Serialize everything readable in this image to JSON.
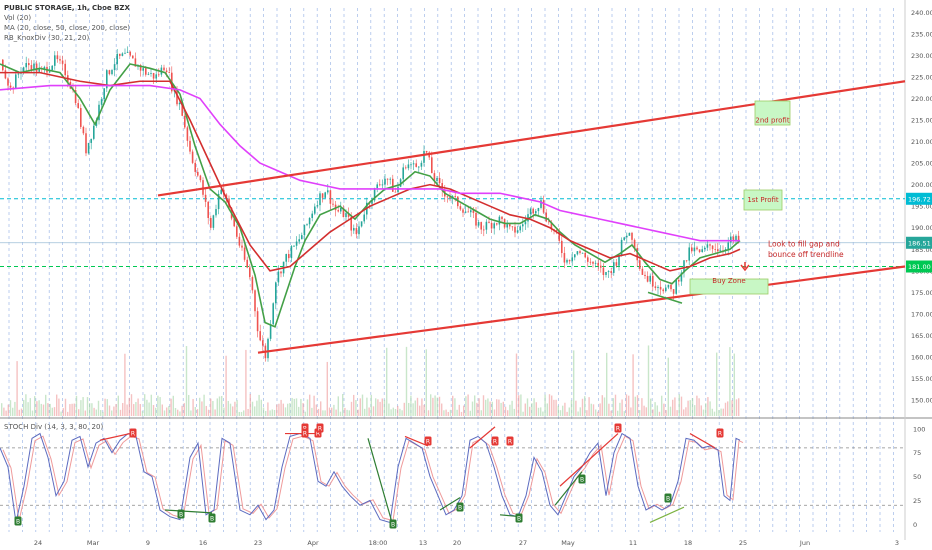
{
  "header": {
    "symbol_line": "PUBLIC STORAGE, 1h, Cboe BZX",
    "indicators": [
      "Vol (20)",
      "MA (20, close, 50, close, 200, close)",
      "RB_KnoxDiv (30, 21, 20)"
    ],
    "stoch_label": "STOCH Div (14, 3, 3, 80, 20)"
  },
  "chart_data": {
    "type": "line",
    "x_tick_labels": [
      "24",
      "Mar",
      "9",
      "16",
      "23",
      "Apr",
      "18:00",
      "13",
      "20",
      "27",
      "May",
      "11",
      "18",
      "25",
      "Jun",
      "3"
    ],
    "price_axis": {
      "ylim": [
        147,
        241
      ],
      "ticks": [
        "240.00",
        "235.00",
        "230.00",
        "225.00",
        "220.00",
        "215.00",
        "210.00",
        "205.00",
        "200.00",
        "195.00",
        "190.00",
        "185.00",
        "180.00",
        "175.00",
        "170.00",
        "165.00",
        "160.00",
        "155.00",
        "150.00"
      ]
    },
    "stoch_axis": {
      "ylim": [
        -8,
        105
      ],
      "ticks": [
        "100",
        "75",
        "50",
        "25",
        "0"
      ]
    },
    "current_price": "186.51",
    "levels": [
      {
        "value": 196.72,
        "label": "196.72",
        "color": "#00bcd4"
      },
      {
        "value": 181.0,
        "label": "181.00",
        "color": "#00c853"
      }
    ],
    "series": [
      {
        "name": "Price",
        "color": "#2e7d32",
        "values": [
          [
            0,
            229
          ],
          [
            10,
            222
          ],
          [
            20,
            227
          ],
          [
            30,
            228
          ],
          [
            40,
            226
          ],
          [
            55,
            229
          ],
          [
            65,
            226
          ],
          [
            75,
            220
          ],
          [
            85,
            208
          ],
          [
            95,
            215
          ],
          [
            105,
            225
          ],
          [
            115,
            229
          ],
          [
            125,
            230
          ],
          [
            135,
            228
          ],
          [
            145,
            226
          ],
          [
            155,
            225
          ],
          [
            165,
            228
          ],
          [
            172,
            222
          ],
          [
            180,
            218
          ],
          [
            190,
            207
          ],
          [
            200,
            200
          ],
          [
            210,
            190
          ],
          [
            220,
            200
          ],
          [
            230,
            193
          ],
          [
            240,
            185
          ],
          [
            250,
            178
          ],
          [
            258,
            165
          ],
          [
            265,
            160
          ],
          [
            275,
            178
          ],
          [
            285,
            183
          ],
          [
            295,
            186
          ],
          [
            305,
            190
          ],
          [
            315,
            196
          ],
          [
            325,
            199
          ],
          [
            335,
            194
          ],
          [
            345,
            193
          ],
          [
            355,
            188
          ],
          [
            365,
            195
          ],
          [
            375,
            199
          ],
          [
            385,
            202
          ],
          [
            395,
            198
          ],
          [
            405,
            205
          ],
          [
            415,
            204
          ],
          [
            425,
            208
          ],
          [
            432,
            202
          ],
          [
            440,
            199
          ],
          [
            450,
            197
          ],
          [
            460,
            195
          ],
          [
            470,
            193
          ],
          [
            480,
            190
          ],
          [
            490,
            191
          ],
          [
            500,
            192
          ],
          [
            510,
            189
          ],
          [
            520,
            190
          ],
          [
            530,
            194
          ],
          [
            540,
            196
          ],
          [
            548,
            191
          ],
          [
            556,
            188
          ],
          [
            565,
            182
          ],
          [
            575,
            185
          ],
          [
            585,
            183
          ],
          [
            595,
            181
          ],
          [
            605,
            179
          ],
          [
            615,
            182
          ],
          [
            625,
            189
          ],
          [
            632,
            188
          ],
          [
            640,
            180
          ],
          [
            648,
            178
          ],
          [
            656,
            177
          ],
          [
            664,
            176
          ],
          [
            672,
            175
          ],
          [
            680,
            180
          ],
          [
            690,
            185
          ],
          [
            700,
            184
          ],
          [
            710,
            186
          ],
          [
            720,
            185
          ],
          [
            730,
            187
          ],
          [
            738,
            187
          ]
        ]
      },
      {
        "name": "MA 20",
        "color": "#43a047",
        "values": [
          [
            0,
            228
          ],
          [
            20,
            226
          ],
          [
            40,
            227
          ],
          [
            60,
            226
          ],
          [
            80,
            220
          ],
          [
            95,
            214
          ],
          [
            110,
            222
          ],
          [
            130,
            228
          ],
          [
            150,
            227
          ],
          [
            165,
            226
          ],
          [
            180,
            221
          ],
          [
            195,
            209
          ],
          [
            210,
            199
          ],
          [
            225,
            196
          ],
          [
            240,
            190
          ],
          [
            255,
            179
          ],
          [
            265,
            168
          ],
          [
            275,
            167
          ],
          [
            285,
            174
          ],
          [
            295,
            181
          ],
          [
            305,
            187
          ],
          [
            320,
            193
          ],
          [
            340,
            195
          ],
          [
            355,
            192
          ],
          [
            370,
            196
          ],
          [
            385,
            199
          ],
          [
            400,
            200
          ],
          [
            415,
            203
          ],
          [
            430,
            202
          ],
          [
            445,
            198
          ],
          [
            460,
            196
          ],
          [
            475,
            194
          ],
          [
            490,
            192
          ],
          [
            505,
            191
          ],
          [
            520,
            191
          ],
          [
            535,
            193
          ],
          [
            548,
            192
          ],
          [
            560,
            189
          ],
          [
            575,
            186
          ],
          [
            590,
            184
          ],
          [
            605,
            182
          ],
          [
            620,
            184
          ],
          [
            632,
            186
          ],
          [
            645,
            182
          ],
          [
            660,
            178
          ],
          [
            672,
            177
          ],
          [
            685,
            180
          ],
          [
            700,
            183
          ],
          [
            715,
            184
          ],
          [
            730,
            185
          ],
          [
            740,
            187
          ]
        ]
      },
      {
        "name": "MA 50",
        "color": "#d32f2f",
        "values": [
          [
            0,
            226
          ],
          [
            40,
            226
          ],
          [
            80,
            224
          ],
          [
            110,
            223
          ],
          [
            140,
            224
          ],
          [
            170,
            224
          ],
          [
            190,
            215
          ],
          [
            210,
            205
          ],
          [
            230,
            195
          ],
          [
            250,
            186
          ],
          [
            270,
            180
          ],
          [
            290,
            181
          ],
          [
            310,
            185
          ],
          [
            330,
            189
          ],
          [
            350,
            192
          ],
          [
            370,
            195
          ],
          [
            390,
            197
          ],
          [
            410,
            199
          ],
          [
            430,
            200
          ],
          [
            450,
            199
          ],
          [
            470,
            197
          ],
          [
            490,
            195
          ],
          [
            510,
            193
          ],
          [
            530,
            192
          ],
          [
            550,
            190
          ],
          [
            570,
            187
          ],
          [
            590,
            185
          ],
          [
            610,
            183
          ],
          [
            630,
            184
          ],
          [
            650,
            182
          ],
          [
            670,
            180
          ],
          [
            690,
            181
          ],
          [
            710,
            183
          ],
          [
            730,
            184
          ],
          [
            740,
            185
          ]
        ]
      },
      {
        "name": "MA 200",
        "color": "#e040fb",
        "values": [
          [
            0,
            222
          ],
          [
            50,
            223
          ],
          [
            100,
            223
          ],
          [
            150,
            223
          ],
          [
            180,
            222
          ],
          [
            200,
            220
          ],
          [
            220,
            214
          ],
          [
            240,
            209
          ],
          [
            260,
            205
          ],
          [
            280,
            203
          ],
          [
            300,
            201
          ],
          [
            320,
            200
          ],
          [
            340,
            199
          ],
          [
            360,
            199
          ],
          [
            380,
            199
          ],
          [
            400,
            199
          ],
          [
            420,
            199
          ],
          [
            440,
            199
          ],
          [
            460,
            198
          ],
          [
            480,
            198
          ],
          [
            500,
            198
          ],
          [
            520,
            197
          ],
          [
            540,
            196
          ],
          [
            560,
            194
          ],
          [
            580,
            193
          ],
          [
            600,
            192
          ],
          [
            620,
            191
          ],
          [
            640,
            190
          ],
          [
            660,
            189
          ],
          [
            680,
            188
          ],
          [
            700,
            187
          ],
          [
            720,
            187
          ],
          [
            740,
            187
          ]
        ]
      }
    ],
    "stoch": {
      "k_color": "#5c6bc0",
      "d_color": "#ef9a9a",
      "values": [
        [
          0,
          80
        ],
        [
          8,
          60
        ],
        [
          16,
          2
        ],
        [
          24,
          40
        ],
        [
          32,
          90
        ],
        [
          40,
          95
        ],
        [
          48,
          70
        ],
        [
          56,
          30
        ],
        [
          64,
          45
        ],
        [
          72,
          88
        ],
        [
          80,
          92
        ],
        [
          88,
          60
        ],
        [
          96,
          85
        ],
        [
          104,
          90
        ],
        [
          112,
          75
        ],
        [
          120,
          88
        ],
        [
          128,
          95
        ],
        [
          136,
          92
        ],
        [
          144,
          55
        ],
        [
          152,
          50
        ],
        [
          160,
          15
        ],
        [
          170,
          8
        ],
        [
          180,
          5
        ],
        [
          190,
          70
        ],
        [
          198,
          85
        ],
        [
          206,
          10
        ],
        [
          214,
          15
        ],
        [
          222,
          90
        ],
        [
          230,
          85
        ],
        [
          240,
          15
        ],
        [
          250,
          10
        ],
        [
          258,
          20
        ],
        [
          266,
          5
        ],
        [
          274,
          15
        ],
        [
          282,
          60
        ],
        [
          290,
          92
        ],
        [
          300,
          95
        ],
        [
          310,
          90
        ],
        [
          318,
          45
        ],
        [
          326,
          40
        ],
        [
          334,
          55
        ],
        [
          342,
          40
        ],
        [
          350,
          30
        ],
        [
          360,
          20
        ],
        [
          370,
          25
        ],
        [
          380,
          5
        ],
        [
          390,
          2
        ],
        [
          398,
          60
        ],
        [
          406,
          90
        ],
        [
          414,
          85
        ],
        [
          422,
          80
        ],
        [
          430,
          50
        ],
        [
          438,
          30
        ],
        [
          446,
          10
        ],
        [
          454,
          15
        ],
        [
          462,
          30
        ],
        [
          470,
          88
        ],
        [
          478,
          92
        ],
        [
          486,
          85
        ],
        [
          494,
          60
        ],
        [
          502,
          30
        ],
        [
          510,
          10
        ],
        [
          518,
          8
        ],
        [
          526,
          30
        ],
        [
          534,
          70
        ],
        [
          542,
          55
        ],
        [
          550,
          20
        ],
        [
          558,
          10
        ],
        [
          566,
          30
        ],
        [
          574,
          50
        ],
        [
          582,
          60
        ],
        [
          590,
          75
        ],
        [
          598,
          85
        ],
        [
          606,
          30
        ],
        [
          614,
          75
        ],
        [
          622,
          95
        ],
        [
          630,
          90
        ],
        [
          638,
          40
        ],
        [
          646,
          15
        ],
        [
          654,
          20
        ],
        [
          662,
          15
        ],
        [
          670,
          20
        ],
        [
          678,
          45
        ],
        [
          686,
          90
        ],
        [
          694,
          88
        ],
        [
          702,
          80
        ],
        [
          710,
          82
        ],
        [
          718,
          78
        ],
        [
          724,
          30
        ],
        [
          730,
          25
        ],
        [
          736,
          90
        ],
        [
          740,
          88
        ]
      ]
    },
    "annotations": [
      {
        "text": "2nd profit",
        "value": 215
      },
      {
        "text": "1st Profit",
        "value": 196.6
      },
      {
        "text": "Buy Zone",
        "value": 177.8
      },
      {
        "text": "Look to fill gap and",
        "value": 186.2
      },
      {
        "text": "bounce off trendline",
        "value": 183.8
      }
    ],
    "markers": [
      "R",
      "R",
      "R",
      "R",
      "R",
      "R",
      "R",
      "R",
      "R",
      "R",
      "B",
      "B",
      "B",
      "B",
      "B",
      "B",
      "B",
      "B"
    ],
    "grid": true,
    "legend": "none"
  }
}
